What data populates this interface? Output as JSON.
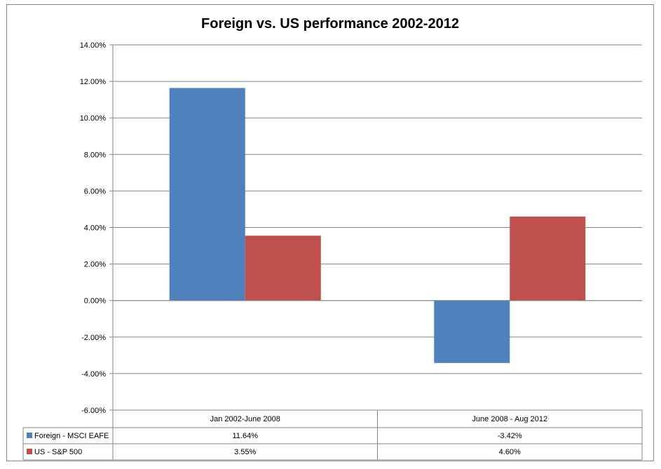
{
  "chart_data": {
    "type": "bar",
    "title": "Foreign vs. US performance 2002-2012",
    "categories": [
      "Jan 2002-June 2008",
      "June 2008 - Aug 2012"
    ],
    "series": [
      {
        "name": "Foreign - MSCI EAFE",
        "values": [
          11.64,
          -3.42
        ],
        "labels": [
          "11.64%",
          "-3.42%"
        ],
        "color": "#4f81bd"
      },
      {
        "name": "US - S&P 500",
        "values": [
          3.55,
          4.6
        ],
        "labels": [
          "3.55%",
          "4.60%"
        ],
        "color": "#c0504d"
      }
    ],
    "ylim": [
      -6,
      14
    ],
    "yticks": [
      14,
      12,
      10,
      8,
      6,
      4,
      2,
      0,
      -2,
      -4,
      -6
    ],
    "ytick_labels": [
      "14.00%",
      "12.00%",
      "10.00%",
      "8.00%",
      "6.00%",
      "4.00%",
      "2.00%",
      "0.00%",
      "-2.00%",
      "-4.00%",
      "-6.00%"
    ],
    "grid": true,
    "legend": "data-table"
  }
}
